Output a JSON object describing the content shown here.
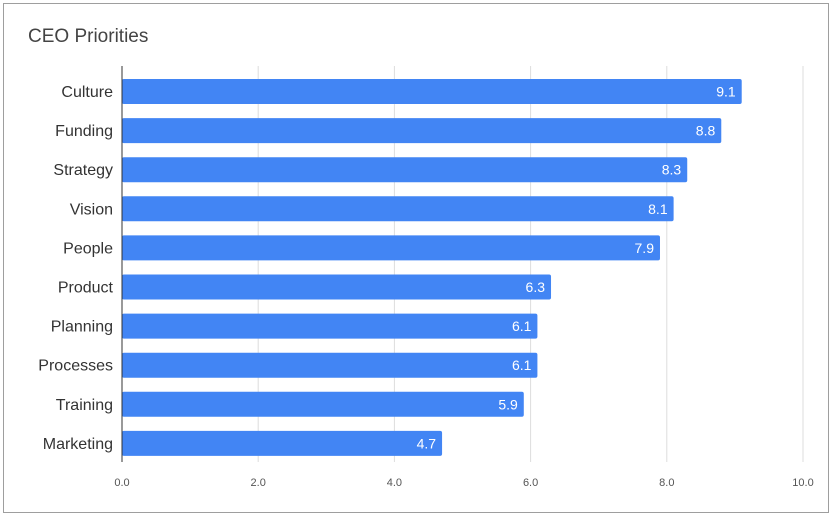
{
  "chart_data": {
    "type": "bar",
    "orientation": "horizontal",
    "title": "CEO Priorities",
    "xlabel": "",
    "ylabel": "",
    "categories": [
      "Culture",
      "Funding",
      "Strategy",
      "Vision",
      "People",
      "Product",
      "Planning",
      "Processes",
      "Training",
      "Marketing"
    ],
    "values": [
      9.1,
      8.8,
      8.3,
      8.1,
      7.9,
      6.3,
      6.1,
      6.1,
      5.9,
      4.7
    ],
    "data_labels": [
      "9.1",
      "8.8",
      "8.3",
      "8.1",
      "7.9",
      "6.3",
      "6.1",
      "6.1",
      "5.9",
      "4.7"
    ],
    "xlim": [
      0,
      10
    ],
    "x_ticks": [
      "0.0",
      "2.0",
      "4.0",
      "6.0",
      "8.0",
      "10.0"
    ],
    "grid": true,
    "legend": "none",
    "bar_color": "#4285f4",
    "grid_color": "#dddddd",
    "axis_color": "#333333"
  }
}
